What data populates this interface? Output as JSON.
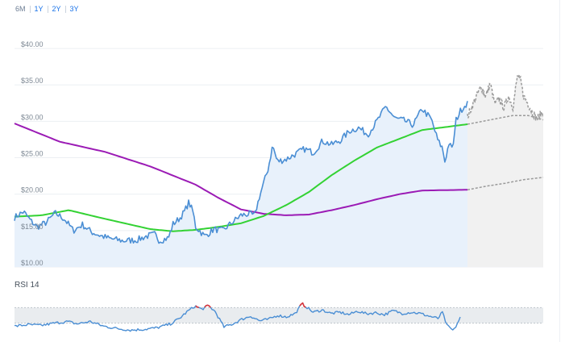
{
  "range_selector": {
    "options": [
      "6M",
      "1Y",
      "2Y",
      "3Y"
    ],
    "active": "6M"
  },
  "colors": {
    "price": "#4a8ed4",
    "price_fill": "#e8f1fb",
    "sma_fast": "#33d233",
    "sma_slow": "#9b1bb5",
    "forecast": "#9a9a9a",
    "forecast_fill": "#f1f1f1",
    "rsi_line": "#4a8ed4",
    "rsi_overbought": "#d9343a",
    "rsi_band": "#e9ecef"
  },
  "chart_data": [
    {
      "type": "line",
      "y_ticks": [
        "$40.00",
        "$35.00",
        "$30.00",
        "$25.00",
        "$20.00",
        "$15.00",
        "$10.00"
      ],
      "y_tick_values": [
        40,
        35,
        30,
        25,
        20,
        15,
        10
      ],
      "ylim": [
        10,
        43
      ],
      "grid": true,
      "price_keypoints": [
        [
          0,
          16.8
        ],
        [
          0.02,
          17.6
        ],
        [
          0.035,
          16.4
        ],
        [
          0.05,
          15.5
        ],
        [
          0.07,
          16.1
        ],
        [
          0.09,
          17.4
        ],
        [
          0.11,
          16.6
        ],
        [
          0.13,
          15.0
        ],
        [
          0.15,
          15.8
        ],
        [
          0.17,
          14.8
        ],
        [
          0.19,
          14.3
        ],
        [
          0.21,
          13.9
        ],
        [
          0.24,
          13.6
        ],
        [
          0.27,
          13.7
        ],
        [
          0.29,
          14.2
        ],
        [
          0.31,
          14.5
        ],
        [
          0.32,
          13.6
        ],
        [
          0.34,
          14.0
        ],
        [
          0.35,
          15.9
        ],
        [
          0.365,
          16.7
        ],
        [
          0.375,
          17.6
        ],
        [
          0.385,
          18.9
        ],
        [
          0.395,
          17.4
        ],
        [
          0.4,
          15.5
        ],
        [
          0.41,
          14.9
        ],
        [
          0.42,
          14.2
        ],
        [
          0.44,
          15.2
        ],
        [
          0.46,
          15.0
        ],
        [
          0.48,
          16.1
        ],
        [
          0.5,
          17.1
        ],
        [
          0.52,
          17.3
        ],
        [
          0.53,
          17.0
        ],
        [
          0.54,
          19.5
        ],
        [
          0.55,
          21.5
        ],
        [
          0.56,
          23.5
        ],
        [
          0.57,
          26.7
        ],
        [
          0.58,
          24.5
        ],
        [
          0.6,
          24.8
        ],
        [
          0.62,
          25.5
        ],
        [
          0.64,
          26.2
        ],
        [
          0.66,
          25.7
        ],
        [
          0.68,
          27.3
        ],
        [
          0.7,
          26.8
        ],
        [
          0.72,
          27.4
        ],
        [
          0.74,
          28.7
        ],
        [
          0.76,
          29.1
        ],
        [
          0.78,
          28.2
        ],
        [
          0.8,
          30.0
        ],
        [
          0.82,
          32.0
        ],
        [
          0.84,
          30.4
        ],
        [
          0.86,
          30.1
        ],
        [
          0.88,
          29.5
        ],
        [
          0.9,
          31.7
        ],
        [
          0.92,
          30.3
        ],
        [
          0.935,
          27.3
        ],
        [
          0.945,
          26.3
        ],
        [
          0.95,
          24.5
        ],
        [
          0.96,
          27.2
        ],
        [
          0.965,
          26.0
        ],
        [
          0.97,
          27.4
        ],
        [
          0.975,
          30.2
        ],
        [
          0.985,
          31.5
        ],
        [
          1.0,
          32.6
        ]
      ],
      "sma_fast_keypoints": [
        [
          0,
          16.9
        ],
        [
          0.06,
          17.1
        ],
        [
          0.12,
          17.8
        ],
        [
          0.18,
          16.9
        ],
        [
          0.25,
          15.9
        ],
        [
          0.3,
          15.2
        ],
        [
          0.35,
          14.9
        ],
        [
          0.4,
          15.1
        ],
        [
          0.45,
          15.5
        ],
        [
          0.5,
          16.0
        ],
        [
          0.55,
          17.0
        ],
        [
          0.6,
          18.5
        ],
        [
          0.65,
          20.3
        ],
        [
          0.7,
          22.6
        ],
        [
          0.75,
          24.6
        ],
        [
          0.8,
          26.4
        ],
        [
          0.85,
          27.6
        ],
        [
          0.9,
          28.8
        ],
        [
          0.95,
          29.2
        ],
        [
          1.0,
          29.6
        ]
      ],
      "sma_slow_keypoints": [
        [
          0,
          29.7
        ],
        [
          0.1,
          27.2
        ],
        [
          0.2,
          25.8
        ],
        [
          0.3,
          23.8
        ],
        [
          0.4,
          21.3
        ],
        [
          0.45,
          19.5
        ],
        [
          0.5,
          17.9
        ],
        [
          0.55,
          17.3
        ],
        [
          0.6,
          17.1
        ],
        [
          0.65,
          17.2
        ],
        [
          0.7,
          17.8
        ],
        [
          0.75,
          18.5
        ],
        [
          0.8,
          19.3
        ],
        [
          0.85,
          20.0
        ],
        [
          0.9,
          20.5
        ],
        [
          1.0,
          20.6
        ]
      ],
      "forecast_upper_keypoints": [
        [
          0,
          30.6
        ],
        [
          0.1,
          33.0
        ],
        [
          0.18,
          34.8
        ],
        [
          0.24,
          33.4
        ],
        [
          0.3,
          35.2
        ],
        [
          0.36,
          32.4
        ],
        [
          0.42,
          33.1
        ],
        [
          0.48,
          31.8
        ],
        [
          0.54,
          33.5
        ],
        [
          0.6,
          32.0
        ],
        [
          0.66,
          36.2
        ],
        [
          0.7,
          35.6
        ],
        [
          0.74,
          33.5
        ],
        [
          0.8,
          32.4
        ],
        [
          0.86,
          31.2
        ],
        [
          0.92,
          30.3
        ],
        [
          1.0,
          31.5
        ]
      ],
      "forecast_mid_keypoints": [
        [
          0,
          29.6
        ],
        [
          0.2,
          30.0
        ],
        [
          0.4,
          30.4
        ],
        [
          0.6,
          30.8
        ],
        [
          0.8,
          30.8
        ],
        [
          1.0,
          30.2
        ]
      ],
      "forecast_lower_keypoints": [
        [
          0,
          20.6
        ],
        [
          0.25,
          21.1
        ],
        [
          0.5,
          21.5
        ],
        [
          0.75,
          22.0
        ],
        [
          1.0,
          22.3
        ]
      ]
    },
    {
      "type": "line",
      "title": "RSI 14",
      "ylim": [
        0,
        100
      ],
      "band": [
        30,
        70
      ],
      "rsi_keypoints": [
        [
          0,
          22
        ],
        [
          0.03,
          26
        ],
        [
          0.06,
          24
        ],
        [
          0.09,
          30
        ],
        [
          0.12,
          34
        ],
        [
          0.14,
          28
        ],
        [
          0.17,
          34
        ],
        [
          0.2,
          22
        ],
        [
          0.23,
          16
        ],
        [
          0.26,
          12
        ],
        [
          0.29,
          14
        ],
        [
          0.32,
          18
        ],
        [
          0.35,
          28
        ],
        [
          0.37,
          42
        ],
        [
          0.39,
          62
        ],
        [
          0.405,
          74
        ],
        [
          0.42,
          66
        ],
        [
          0.435,
          75
        ],
        [
          0.45,
          60
        ],
        [
          0.47,
          20
        ],
        [
          0.49,
          28
        ],
        [
          0.51,
          40
        ],
        [
          0.53,
          48
        ],
        [
          0.55,
          36
        ],
        [
          0.57,
          40
        ],
        [
          0.59,
          50
        ],
        [
          0.61,
          46
        ],
        [
          0.63,
          55
        ],
        [
          0.645,
          80
        ],
        [
          0.655,
          72
        ],
        [
          0.67,
          58
        ],
        [
          0.69,
          64
        ],
        [
          0.71,
          55
        ],
        [
          0.73,
          58
        ],
        [
          0.75,
          52
        ],
        [
          0.77,
          61
        ],
        [
          0.79,
          54
        ],
        [
          0.81,
          57
        ],
        [
          0.83,
          52
        ],
        [
          0.85,
          62
        ],
        [
          0.87,
          55
        ],
        [
          0.89,
          58
        ],
        [
          0.91,
          55
        ],
        [
          0.93,
          48
        ],
        [
          0.95,
          42
        ],
        [
          0.96,
          58
        ],
        [
          0.97,
          24
        ],
        [
          0.985,
          10
        ],
        [
          1.0,
          44
        ]
      ]
    }
  ]
}
